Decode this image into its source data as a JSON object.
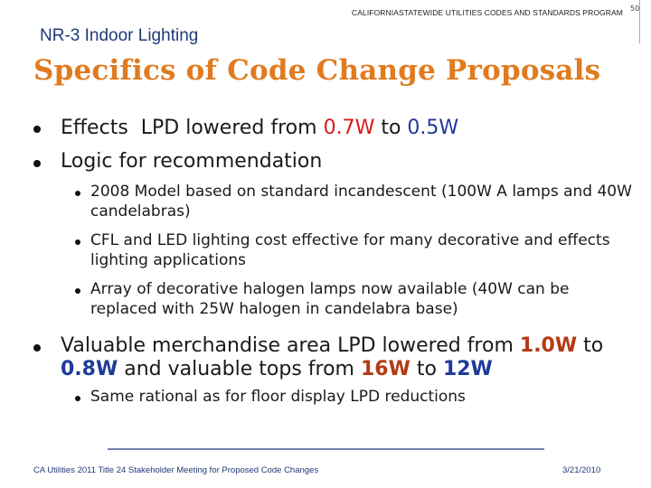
{
  "header": {
    "program": "CALIFORNIASTATEWIDE UTILITIES CODES AND STANDARDS PROGRAM",
    "page_number": "50"
  },
  "subtitle": "NR-3 Indoor Lighting",
  "title": "Specifics of Code Change Proposals",
  "bullets": {
    "effects": {
      "prefix": "Effects  LPD lowered from ",
      "from": "0.7W",
      "middle": " to ",
      "to": "0.5W"
    },
    "logic": {
      "text": "Logic for recommendation",
      "sub": [
        "2008 Model based on standard incandescent (100W A lamps and 40W candelabras)",
        "CFL and LED lighting cost effective for many decorative and effects lighting applications",
        "Array of decorative halogen lamps now available (40W can be replaced with 25W halogen in candelabra base)"
      ]
    },
    "merch": {
      "p1": "Valuable merchandise area LPD lowered from ",
      "v1": "1.0W",
      "p2": " to",
      "v2": "0.8W",
      "p3": " and valuable tops from ",
      "v3": "16W",
      "p4": " to ",
      "v4": "12W",
      "sub": "Same rational as for floor display LPD reductions"
    }
  },
  "footer": {
    "left": "CA Utilities 2011 Title 24 Stakeholder Meeting for Proposed Code Changes",
    "right": "3/21/2010"
  },
  "colors": {
    "title": "#e07b1f",
    "subtitle": "#1f3a78",
    "highlight_red": "#d81b1b",
    "highlight_navy": "#1f3a99",
    "highlight_brown": "#b53a12"
  }
}
